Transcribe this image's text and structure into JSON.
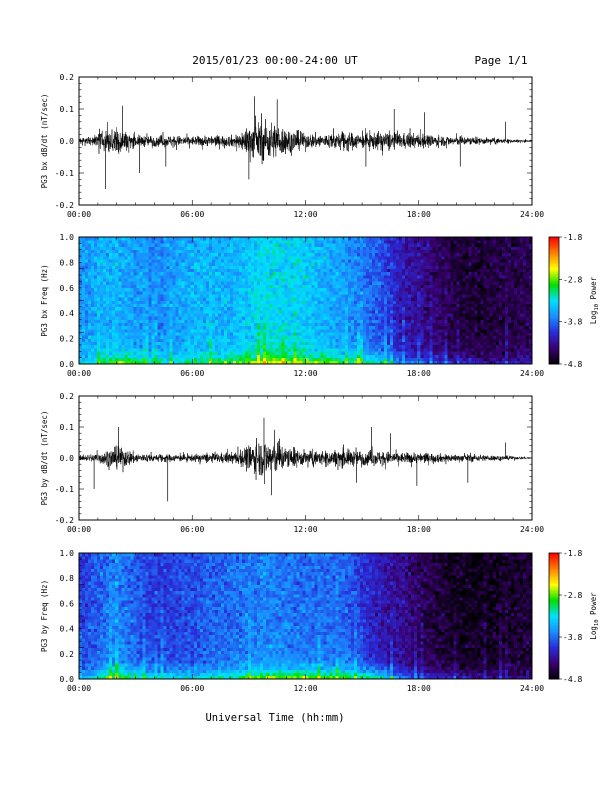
{
  "header": {
    "title": "2015/01/23  00:00-24:00 UT",
    "page": "Page 1/1"
  },
  "xaxis": {
    "title": "Universal Time (hh:mm)",
    "ticks": [
      "00:00",
      "06:00",
      "12:00",
      "18:00",
      "24:00"
    ],
    "range_hours": [
      0,
      24
    ]
  },
  "colorbar": {
    "label": "Log10 Power",
    "label_main": "Log",
    "label_sub": "10",
    "label_tail": " Power",
    "ticks": [
      "-1.8",
      "-2.8",
      "-3.8",
      "-4.8"
    ],
    "range": [
      -4.8,
      -1.8
    ],
    "colormap": [
      "#000000",
      "#3a0070",
      "#2a2ad8",
      "#1a8cff",
      "#00e0ff",
      "#00e000",
      "#ffff00",
      "#ff8000",
      "#ff0000"
    ]
  },
  "colors": {
    "trace": "#000000",
    "axes": "#000000",
    "background": "#ffffff"
  },
  "chart_data": [
    {
      "type": "line",
      "id": "bx-timeseries",
      "ylabel": "PG3 bx dB/dt (nT/sec)",
      "ylim": [
        -0.2,
        0.2
      ],
      "yticks": [
        "0.2",
        "0.1",
        "0.0",
        "-0.1",
        "-0.2"
      ],
      "yvalues": [
        0.2,
        0.1,
        0.0,
        -0.1,
        -0.2
      ],
      "envelope": {
        "x_hours": [
          0,
          1,
          1.5,
          2,
          2.5,
          3,
          4,
          5,
          6,
          7,
          8,
          8.5,
          9,
          9.5,
          10,
          10.5,
          11,
          12,
          13,
          14,
          15,
          16,
          17,
          18,
          19,
          20,
          21,
          22,
          23,
          24
        ],
        "amplitude": [
          0.01,
          0.04,
          0.06,
          0.09,
          0.05,
          0.03,
          0.03,
          0.03,
          0.025,
          0.03,
          0.03,
          0.04,
          0.09,
          0.1,
          0.11,
          0.09,
          0.07,
          0.04,
          0.04,
          0.05,
          0.04,
          0.05,
          0.04,
          0.04,
          0.03,
          0.025,
          0.02,
          0.015,
          0.01,
          0.005
        ]
      },
      "spikes": [
        {
          "x_hours": 1.4,
          "y": -0.15
        },
        {
          "x_hours": 2.3,
          "y": 0.11
        },
        {
          "x_hours": 3.2,
          "y": -0.1
        },
        {
          "x_hours": 4.6,
          "y": -0.08
        },
        {
          "x_hours": 9.0,
          "y": -0.12
        },
        {
          "x_hours": 9.3,
          "y": 0.14
        },
        {
          "x_hours": 10.5,
          "y": 0.13
        },
        {
          "x_hours": 15.2,
          "y": -0.08
        },
        {
          "x_hours": 16.7,
          "y": 0.1
        },
        {
          "x_hours": 18.3,
          "y": 0.09
        },
        {
          "x_hours": 20.2,
          "y": -0.08
        },
        {
          "x_hours": 22.6,
          "y": 0.06
        }
      ]
    },
    {
      "type": "heatmap",
      "id": "bx-spectrogram",
      "ylabel": "PG3 bx Freq (Hz)",
      "ylim": [
        0.0,
        1.0
      ],
      "yticks": [
        "1.0",
        "0.8",
        "0.6",
        "0.4",
        "0.2",
        "0.0"
      ],
      "yvalues": [
        1.0,
        0.8,
        0.6,
        0.4,
        0.2,
        0.0
      ],
      "zlim": [
        -4.8,
        -1.8
      ],
      "power_profile_by_hour": {
        "x_hours": [
          0,
          2,
          4,
          6,
          8,
          10,
          12,
          14,
          16,
          17,
          18,
          20,
          22,
          24
        ],
        "background_log10_power": [
          -3.6,
          -3.5,
          -3.7,
          -3.5,
          -3.5,
          -3.3,
          -3.4,
          -3.6,
          -3.9,
          -4.2,
          -4.3,
          -4.6,
          -4.6,
          -4.5
        ],
        "low_freq_log10_power": [
          -3.4,
          -2.6,
          -3.2,
          -3.0,
          -2.8,
          -2.5,
          -2.6,
          -2.8,
          -3.0,
          -3.6,
          -3.8,
          -4.0,
          -4.2,
          -4.2
        ]
      }
    },
    {
      "type": "line",
      "id": "by-timeseries",
      "ylabel": "PG3 by dB/dt (nT/sec)",
      "ylim": [
        -0.2,
        0.2
      ],
      "yticks": [
        "0.2",
        "0.1",
        "0.0",
        "-0.1",
        "-0.2"
      ],
      "yvalues": [
        0.2,
        0.1,
        0.0,
        -0.1,
        -0.2
      ],
      "envelope": {
        "x_hours": [
          0,
          1,
          1.5,
          2,
          2.5,
          3,
          4,
          5,
          6,
          7,
          8,
          8.5,
          9,
          9.5,
          10,
          10.5,
          11,
          12,
          13,
          14,
          15,
          16,
          17,
          18,
          19,
          20,
          21,
          22,
          23,
          24
        ],
        "amplitude": [
          0.01,
          0.03,
          0.05,
          0.06,
          0.05,
          0.03,
          0.02,
          0.02,
          0.02,
          0.025,
          0.03,
          0.04,
          0.08,
          0.1,
          0.1,
          0.09,
          0.06,
          0.04,
          0.04,
          0.05,
          0.04,
          0.04,
          0.03,
          0.03,
          0.025,
          0.02,
          0.02,
          0.015,
          0.01,
          0.005
        ]
      },
      "spikes": [
        {
          "x_hours": 0.8,
          "y": -0.1
        },
        {
          "x_hours": 2.1,
          "y": 0.1
        },
        {
          "x_hours": 4.7,
          "y": -0.14
        },
        {
          "x_hours": 9.8,
          "y": 0.13
        },
        {
          "x_hours": 10.2,
          "y": -0.12
        },
        {
          "x_hours": 14.7,
          "y": -0.08
        },
        {
          "x_hours": 15.5,
          "y": 0.1
        },
        {
          "x_hours": 16.5,
          "y": 0.08
        },
        {
          "x_hours": 17.9,
          "y": -0.09
        },
        {
          "x_hours": 20.6,
          "y": -0.08
        },
        {
          "x_hours": 22.6,
          "y": 0.05
        }
      ]
    },
    {
      "type": "heatmap",
      "id": "by-spectrogram",
      "ylabel": "PG3 by Freq (Hz)",
      "ylim": [
        0.0,
        1.0
      ],
      "yticks": [
        "1.0",
        "0.8",
        "0.6",
        "0.4",
        "0.2",
        "0.0"
      ],
      "yvalues": [
        1.0,
        0.8,
        0.6,
        0.4,
        0.2,
        0.0
      ],
      "zlim": [
        -4.8,
        -1.8
      ],
      "power_profile_by_hour": {
        "x_hours": [
          0,
          2,
          4,
          6,
          8,
          10,
          12,
          14,
          16,
          17,
          18,
          20,
          22,
          24
        ],
        "background_log10_power": [
          -4.0,
          -3.7,
          -4.0,
          -3.9,
          -3.8,
          -3.7,
          -3.8,
          -3.8,
          -4.2,
          -4.3,
          -4.5,
          -4.7,
          -4.7,
          -4.6
        ],
        "low_freq_log10_power": [
          -3.6,
          -2.6,
          -3.2,
          -3.2,
          -3.0,
          -2.6,
          -2.6,
          -2.7,
          -3.0,
          -3.6,
          -3.9,
          -4.1,
          -4.3,
          -4.3
        ]
      }
    }
  ]
}
